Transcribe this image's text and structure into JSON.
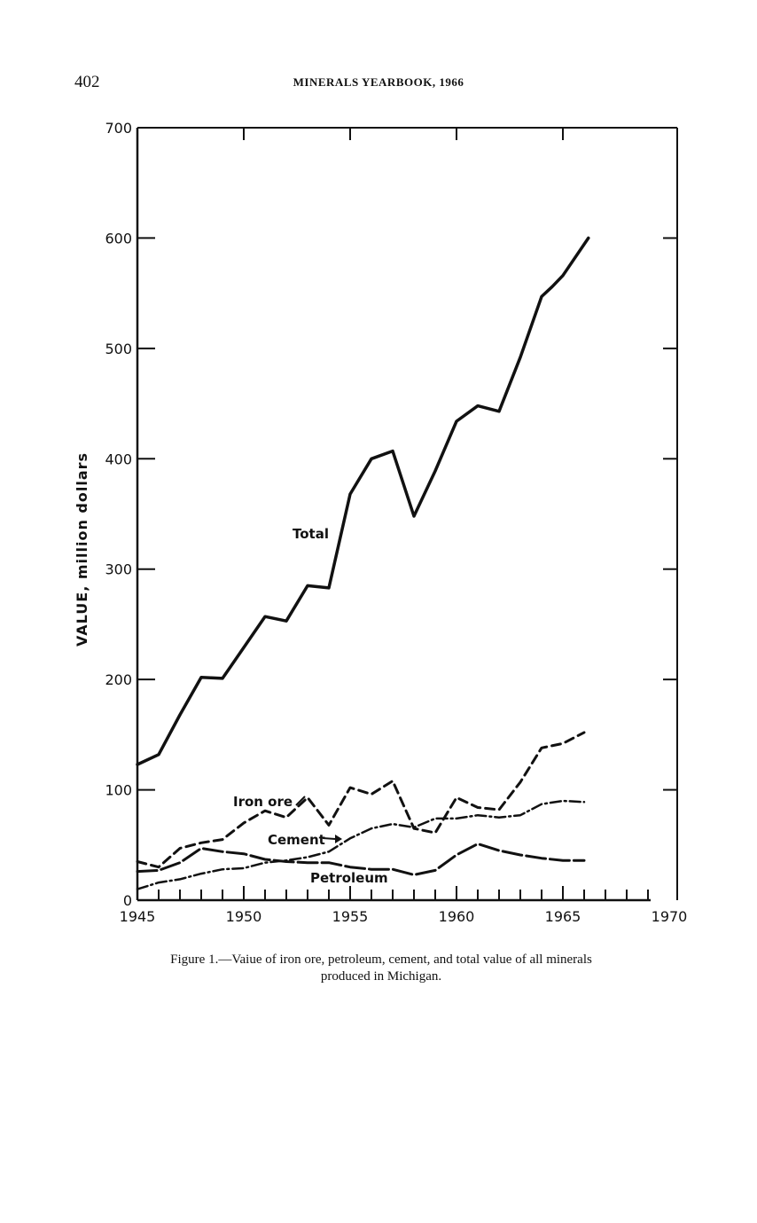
{
  "page": {
    "page_number": "402",
    "running_head": "MINERALS YEARBOOK, 1966"
  },
  "caption": {
    "line1": "Figure 1.—Vaiue of iron ore, petroleum, cement, and total value of all minerals",
    "line2": "produced in Michigan."
  },
  "chart_data": {
    "type": "line",
    "title": "",
    "xlabel": "",
    "ylabel": "VALUE, million dollars",
    "xlim": [
      1945,
      1970
    ],
    "ylim": [
      0,
      700
    ],
    "x_ticks": [
      1945,
      1950,
      1955,
      1960,
      1965,
      1970
    ],
    "x_tick_labels": [
      "1945",
      "1950",
      "1955",
      "1960",
      "1965",
      "1970"
    ],
    "y_ticks": [
      0,
      100,
      200,
      300,
      400,
      500,
      600,
      700
    ],
    "y_tick_labels": [
      "0",
      "100",
      "200",
      "300",
      "400",
      "500",
      "600",
      "700"
    ],
    "grid": false,
    "series": [
      {
        "name": "Total",
        "style": "solid",
        "x": [
          1945,
          1946,
          1947,
          1948,
          1949,
          1950,
          1951,
          1952,
          1953,
          1954,
          1955,
          1956,
          1957,
          1958,
          1959,
          1960,
          1961,
          1962,
          1963,
          1964,
          1964.5,
          1965,
          1966.2
        ],
        "values": [
          123,
          132,
          168,
          202,
          201,
          229,
          257,
          253,
          285,
          283,
          368,
          400,
          407,
          348,
          389,
          434,
          448,
          443,
          492,
          547,
          556,
          566,
          600
        ]
      },
      {
        "name": "Iron ore",
        "style": "dashed",
        "x": [
          1945,
          1946,
          1947,
          1948,
          1949,
          1950,
          1951,
          1952,
          1953,
          1954,
          1955,
          1956,
          1957,
          1958,
          1959,
          1960,
          1961,
          1962,
          1963,
          1964,
          1965,
          1966
        ],
        "values": [
          35,
          30,
          47,
          52,
          55,
          70,
          81,
          75,
          93,
          68,
          102,
          96,
          108,
          65,
          61,
          93,
          84,
          82,
          107,
          138,
          142,
          152
        ]
      },
      {
        "name": "Cement",
        "style": "dash-dot",
        "x": [
          1945,
          1946,
          1947,
          1948,
          1949,
          1950,
          1951,
          1952,
          1953,
          1954,
          1955,
          1956,
          1957,
          1958,
          1959,
          1960,
          1961,
          1962,
          1963,
          1964,
          1965,
          1966
        ],
        "values": [
          10,
          16,
          19,
          24,
          28,
          29,
          34,
          36,
          39,
          44,
          56,
          65,
          69,
          66,
          74,
          74,
          77,
          75,
          77,
          87,
          90,
          89
        ]
      },
      {
        "name": "Petroleum",
        "style": "long-dash",
        "x": [
          1945,
          1946,
          1947,
          1948,
          1949,
          1950,
          1951,
          1952,
          1953,
          1954,
          1955,
          1956,
          1957,
          1958,
          1959,
          1960,
          1961,
          1962,
          1963,
          1964,
          1965,
          1966
        ],
        "values": [
          26,
          27,
          34,
          47,
          44,
          42,
          37,
          35,
          34,
          34,
          30,
          28,
          28,
          23,
          27,
          41,
          51,
          45,
          41,
          38,
          36,
          36
        ]
      }
    ],
    "annotations": [
      {
        "text": "Total",
        "series": "Total"
      },
      {
        "text": "Iron ore",
        "series": "Iron ore"
      },
      {
        "text": "Cement",
        "series": "Cement"
      },
      {
        "text": "Petroleum",
        "series": "Petroleum"
      }
    ]
  }
}
